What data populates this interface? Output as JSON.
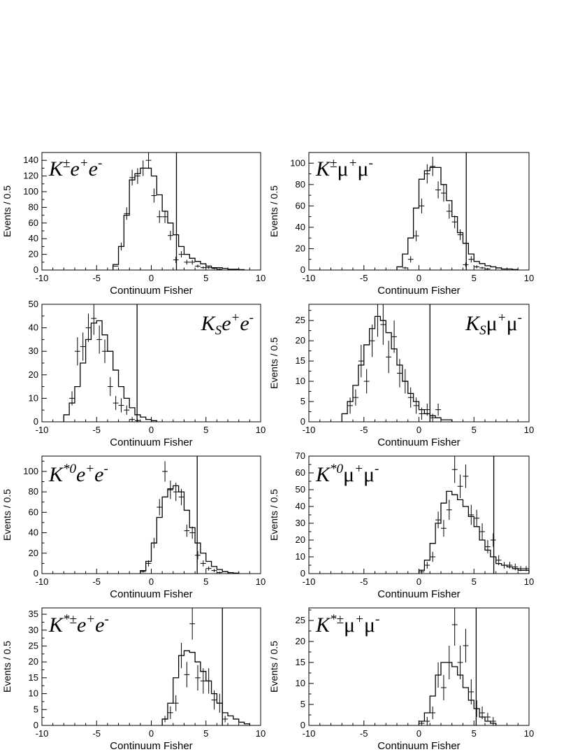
{
  "chart_data": [
    {
      "type": "histogram",
      "title": {
        "base": "K",
        "base_sup": "±",
        "lepton": "e",
        "plus": "+",
        "minus": "-"
      },
      "xlabel": "Continuum Fisher",
      "ylabel": "Events / 0.5",
      "xlim": [
        -10,
        10
      ],
      "ylim": [
        0,
        150
      ],
      "xticks": [
        -10,
        -5,
        0,
        5,
        10
      ],
      "yticks": [
        0,
        20,
        40,
        60,
        80,
        100,
        120,
        140
      ],
      "cut": 2.3,
      "hist_start": -3.5,
      "hist": [
        7,
        30,
        70,
        115,
        123,
        130,
        130,
        120,
        96,
        75,
        60,
        45,
        30,
        20,
        15,
        11,
        8,
        5,
        3,
        3,
        2,
        1,
        1,
        0.5
      ],
      "points": [
        [
          -3.25,
          5,
          0
        ],
        [
          -2.75,
          30,
          5
        ],
        [
          -2.25,
          72,
          8
        ],
        [
          -1.75,
          118,
          10
        ],
        [
          -1.25,
          120,
          10
        ],
        [
          -0.75,
          130,
          10
        ],
        [
          -0.25,
          140,
          11
        ],
        [
          0.25,
          95,
          9
        ],
        [
          0.75,
          68,
          8
        ],
        [
          1.25,
          68,
          8
        ],
        [
          1.75,
          44,
          6
        ],
        [
          2.25,
          13,
          4
        ],
        [
          2.75,
          20,
          4
        ],
        [
          3.25,
          10,
          3
        ],
        [
          3.75,
          10,
          3
        ],
        [
          4.25,
          5,
          2
        ],
        [
          4.75,
          3,
          1.5
        ],
        [
          5.25,
          3,
          1.5
        ],
        [
          5.75,
          2,
          1
        ],
        [
          6.25,
          1,
          1
        ]
      ]
    },
    {
      "type": "histogram",
      "title": {
        "base": "K",
        "base_sup": "±",
        "lepton": "μ",
        "plus": "+",
        "minus": "-"
      },
      "xlabel": "Continuum Fisher",
      "ylabel": "Events / 0.5",
      "xlim": [
        -10,
        10
      ],
      "ylim": [
        0,
        110
      ],
      "xticks": [
        -10,
        -5,
        0,
        5,
        10
      ],
      "yticks": [
        0,
        20,
        40,
        60,
        80,
        100
      ],
      "cut": 4.3,
      "hist_start": -2.0,
      "hist": [
        3,
        15,
        30,
        58,
        85,
        93,
        96,
        96,
        80,
        65,
        50,
        35,
        25,
        15,
        8,
        6,
        4,
        3,
        2,
        1,
        1,
        0.5
      ],
      "points": [
        [
          -1.25,
          2,
          1
        ],
        [
          -0.75,
          10,
          3
        ],
        [
          -0.25,
          32,
          5
        ],
        [
          0.25,
          60,
          7
        ],
        [
          0.75,
          90,
          9
        ],
        [
          1.25,
          97,
          9
        ],
        [
          1.75,
          75,
          8
        ],
        [
          2.25,
          72,
          8
        ],
        [
          2.75,
          55,
          7
        ],
        [
          3.25,
          45,
          6
        ],
        [
          3.75,
          33,
          5
        ],
        [
          4.25,
          5,
          2
        ],
        [
          4.75,
          10,
          3
        ],
        [
          5.25,
          3,
          1.5
        ],
        [
          5.75,
          2,
          1
        ],
        [
          6.25,
          1,
          1
        ]
      ]
    },
    {
      "type": "histogram",
      "title": {
        "base": "K",
        "base_sub": "S",
        "lepton": "e",
        "plus": "+",
        "minus": "-"
      },
      "xlabel": "Continuum Fisher",
      "ylabel": "",
      "xlim": [
        -10,
        10
      ],
      "ylim": [
        0,
        50
      ],
      "xticks": [
        -10,
        -5,
        0,
        5,
        10
      ],
      "yticks": [
        0,
        10,
        20,
        30,
        40,
        50
      ],
      "cut": -1.3,
      "hist_start": -8.0,
      "hist": [
        3,
        8,
        15,
        25,
        35,
        42,
        43,
        37,
        30,
        22,
        15,
        10,
        6,
        3,
        2,
        1,
        0.5
      ],
      "points": [
        [
          -7.25,
          10,
          3
        ],
        [
          -6.75,
          30,
          6
        ],
        [
          -6.25,
          32,
          6
        ],
        [
          -5.75,
          40,
          6
        ],
        [
          -5.25,
          44,
          7
        ],
        [
          -4.75,
          35,
          6
        ],
        [
          -4.25,
          30,
          5
        ],
        [
          -3.75,
          15,
          4
        ],
        [
          -3.25,
          8,
          3
        ],
        [
          -2.75,
          7,
          3
        ],
        [
          -2.25,
          5,
          2
        ],
        [
          -1.75,
          1,
          1
        ],
        [
          -1.25,
          0.5,
          0.5
        ]
      ]
    },
    {
      "type": "histogram",
      "title": {
        "base": "K",
        "base_sub": "S",
        "lepton": "μ",
        "plus": "+",
        "minus": "-"
      },
      "xlabel": "Continuum Fisher",
      "ylabel": "Events / 0.5",
      "xlim": [
        -10,
        10
      ],
      "ylim": [
        0,
        29
      ],
      "xticks": [
        -10,
        -5,
        0,
        5,
        10
      ],
      "yticks": [
        0,
        5,
        10,
        15,
        20,
        25
      ],
      "cut": 1.0,
      "hist_start": -7.0,
      "hist": [
        2,
        5,
        9,
        14,
        19,
        23,
        26,
        25,
        22,
        18,
        14,
        10,
        7,
        5,
        3,
        2,
        1.5,
        1,
        0.5,
        0.5
      ],
      "points": [
        [
          -6.25,
          4,
          2
        ],
        [
          -5.75,
          6,
          2
        ],
        [
          -5.25,
          15,
          4
        ],
        [
          -4.75,
          10,
          3
        ],
        [
          -4.25,
          20,
          4
        ],
        [
          -3.75,
          26,
          5
        ],
        [
          -3.25,
          24,
          5
        ],
        [
          -2.75,
          16,
          4
        ],
        [
          -2.25,
          21,
          4
        ],
        [
          -1.75,
          12,
          3.5
        ],
        [
          -1.25,
          10,
          3
        ],
        [
          -0.75,
          6,
          2.5
        ],
        [
          -0.25,
          4,
          2
        ],
        [
          0.25,
          2,
          1.5
        ],
        [
          0.75,
          3,
          1.5
        ],
        [
          1.25,
          1,
          1
        ],
        [
          1.75,
          3,
          1.5
        ]
      ]
    },
    {
      "type": "histogram",
      "title": {
        "base": "K",
        "base_sup": "*0",
        "lepton": "e",
        "plus": "+",
        "minus": "-"
      },
      "xlabel": "Continuum Fisher",
      "ylabel": "Events / 0.5",
      "xlim": [
        -10,
        10
      ],
      "ylim": [
        0,
        115
      ],
      "xticks": [
        -10,
        -5,
        0,
        5,
        10
      ],
      "yticks": [
        0,
        20,
        40,
        60,
        80,
        100
      ],
      "cut": 4.2,
      "hist_start": -1.0,
      "hist": [
        3,
        12,
        30,
        55,
        75,
        83,
        86,
        80,
        62,
        45,
        30,
        20,
        12,
        7,
        4,
        2,
        1,
        0.5
      ],
      "points": [
        [
          -0.75,
          2,
          1
        ],
        [
          -0.25,
          10,
          3
        ],
        [
          0.25,
          30,
          5
        ],
        [
          0.75,
          65,
          8
        ],
        [
          1.25,
          100,
          10
        ],
        [
          1.75,
          82,
          9
        ],
        [
          2.25,
          80,
          9
        ],
        [
          2.75,
          75,
          8
        ],
        [
          3.25,
          42,
          6
        ],
        [
          3.75,
          40,
          6
        ],
        [
          4.25,
          18,
          4
        ],
        [
          4.75,
          10,
          3
        ],
        [
          5.25,
          5,
          2
        ],
        [
          5.75,
          3,
          1.5
        ],
        [
          6.25,
          1,
          1
        ]
      ]
    },
    {
      "type": "histogram",
      "title": {
        "base": "K",
        "base_sup": "*0",
        "lepton": "μ",
        "plus": "+",
        "minus": "-"
      },
      "xlabel": "Continuum Fisher",
      "ylabel": "Events / 0.5",
      "xlim": [
        -10,
        10
      ],
      "ylim": [
        0,
        70
      ],
      "xticks": [
        -10,
        -5,
        0,
        5,
        10
      ],
      "yticks": [
        0,
        10,
        20,
        30,
        40,
        50,
        60,
        70
      ],
      "cut": 6.8,
      "hist_start": 0.0,
      "hist": [
        2,
        8,
        18,
        30,
        42,
        49,
        47,
        44,
        40,
        34,
        28,
        20,
        14,
        10,
        6,
        5,
        4,
        3,
        2,
        2
      ],
      "points": [
        [
          0.25,
          1,
          1
        ],
        [
          0.75,
          5,
          2
        ],
        [
          1.25,
          10,
          3
        ],
        [
          1.75,
          32,
          5
        ],
        [
          2.25,
          27,
          5
        ],
        [
          2.75,
          38,
          6
        ],
        [
          3.25,
          62,
          8
        ],
        [
          3.75,
          52,
          7
        ],
        [
          4.25,
          58,
          7
        ],
        [
          4.75,
          35,
          6
        ],
        [
          5.25,
          33,
          5
        ],
        [
          5.75,
          25,
          5
        ],
        [
          6.25,
          16,
          4
        ],
        [
          6.75,
          20,
          4
        ],
        [
          7.25,
          8,
          3
        ],
        [
          7.75,
          5,
          2
        ],
        [
          8.25,
          5,
          2
        ],
        [
          8.75,
          4,
          2
        ],
        [
          9.25,
          3,
          1.5
        ],
        [
          9.75,
          3,
          1.5
        ]
      ]
    },
    {
      "type": "histogram",
      "title": {
        "base": "K",
        "base_sup": "*±",
        "lepton": "e",
        "plus": "+",
        "minus": "-"
      },
      "xlabel": "Continuum Fisher",
      "ylabel": "Events / 0.5",
      "xlim": [
        -10,
        10
      ],
      "ylim": [
        0,
        37
      ],
      "xticks": [
        -10,
        -5,
        0,
        5,
        10
      ],
      "yticks": [
        0,
        5,
        10,
        15,
        20,
        25,
        30,
        35
      ],
      "cut": 6.5,
      "hist_start": 1.0,
      "hist": [
        2,
        7,
        15,
        22,
        23.5,
        23,
        20,
        17,
        14,
        10,
        7,
        4,
        3,
        2,
        1,
        0.5
      ],
      "points": [
        [
          1.25,
          2,
          1
        ],
        [
          1.75,
          4,
          2
        ],
        [
          2.25,
          7,
          2.5
        ],
        [
          2.75,
          22,
          4
        ],
        [
          3.25,
          16,
          4
        ],
        [
          3.75,
          32,
          5
        ],
        [
          4.25,
          15,
          4
        ],
        [
          4.75,
          14,
          4
        ],
        [
          5.25,
          14,
          4
        ],
        [
          5.75,
          8,
          3
        ],
        [
          6.25,
          7,
          3
        ],
        [
          6.75,
          2,
          1
        ]
      ]
    },
    {
      "type": "histogram",
      "title": {
        "base": "K",
        "base_sup": "*±",
        "lepton": "μ",
        "plus": "+",
        "minus": "-"
      },
      "xlabel": "Continuum Fisher",
      "ylabel": "Events / 0.5",
      "xlim": [
        -10,
        10
      ],
      "ylim": [
        0,
        28
      ],
      "xticks": [
        -10,
        -5,
        0,
        5,
        10
      ],
      "yticks": [
        0,
        5,
        10,
        15,
        20,
        25
      ],
      "cut": 5.2,
      "hist_start": 0.0,
      "hist": [
        1,
        3,
        7,
        12,
        15,
        15,
        14,
        12,
        9,
        6,
        4,
        2,
        1,
        0.5
      ],
      "points": [
        [
          0.25,
          0.5,
          0.5
        ],
        [
          0.75,
          1,
          1
        ],
        [
          1.25,
          3,
          1.5
        ],
        [
          1.75,
          12,
          3
        ],
        [
          2.25,
          9,
          3
        ],
        [
          2.75,
          15,
          4
        ],
        [
          3.25,
          24,
          5
        ],
        [
          3.75,
          15,
          4
        ],
        [
          4.25,
          19,
          4
        ],
        [
          4.75,
          8,
          3
        ],
        [
          5.25,
          4,
          2
        ],
        [
          5.75,
          3,
          1.5
        ],
        [
          6.25,
          2,
          1
        ],
        [
          6.75,
          1,
          1
        ]
      ]
    }
  ]
}
